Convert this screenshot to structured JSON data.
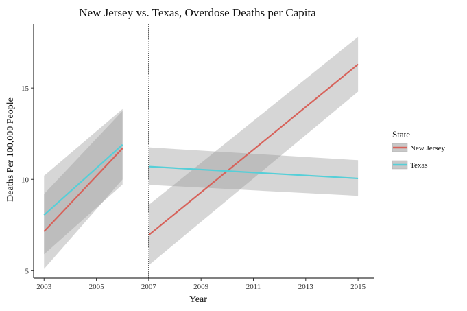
{
  "chart_data": {
    "type": "line",
    "title": "New Jersey vs. Texas, Overdose Deaths per Capita",
    "xlabel": "Year",
    "ylabel": "Deaths Per 100,000 People",
    "xlim": [
      2002.6,
      2015.6
    ],
    "ylim": [
      4.6,
      18.5
    ],
    "x_ticks": [
      2003,
      2005,
      2007,
      2009,
      2011,
      2013,
      2015
    ],
    "y_ticks": [
      5,
      10,
      15
    ],
    "vline": 2007,
    "legend": {
      "title": "State",
      "position": "right"
    },
    "series": [
      {
        "name": "New Jersey",
        "color": "#d7625a",
        "segments": [
          {
            "x": [
              2003,
              2006
            ],
            "y": [
              7.15,
              11.7
            ],
            "ci_lower": [
              5.9,
              9.72
            ],
            "ci_upper": [
              9.2,
              13.75
            ]
          },
          {
            "x": [
              2007,
              2015
            ],
            "y": [
              6.95,
              16.3
            ],
            "ci_lower": [
              5.3,
              14.8
            ],
            "ci_upper": [
              8.6,
              17.8
            ]
          }
        ]
      },
      {
        "name": "Texas",
        "color": "#55cfd8",
        "segments": [
          {
            "x": [
              2003,
              2006
            ],
            "y": [
              8.05,
              11.9
            ],
            "ci_lower": [
              5.1,
              10.0
            ],
            "ci_upper": [
              10.2,
              13.85
            ]
          },
          {
            "x": [
              2007,
              2015
            ],
            "y": [
              10.7,
              10.05
            ],
            "ci_lower": [
              9.7,
              9.1
            ],
            "ci_upper": [
              11.75,
              11.05
            ]
          }
        ]
      }
    ]
  }
}
